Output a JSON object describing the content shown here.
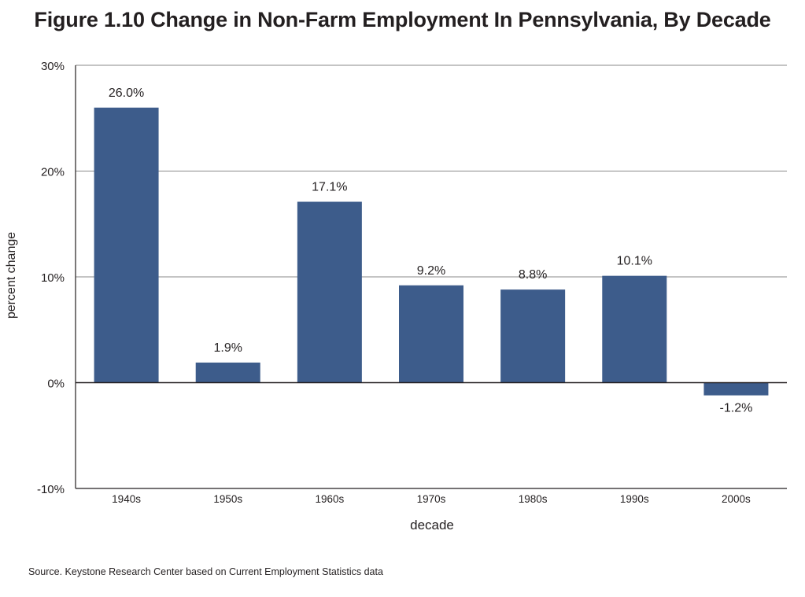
{
  "chart_data": {
    "type": "bar",
    "title": "Figure 1.10 Change in Non-Farm Employment In Pennsylvania, By Decade",
    "xlabel": "decade",
    "ylabel": "percent change",
    "categories": [
      "1940s",
      "1950s",
      "1960s",
      "1970s",
      "1980s",
      "1990s",
      "2000s"
    ],
    "values": [
      26.0,
      1.9,
      17.1,
      9.2,
      8.8,
      10.1,
      -1.2
    ],
    "value_labels": [
      "26.0%",
      "1.9%",
      "17.1%",
      "9.2%",
      "8.8%",
      "10.1%",
      "-1.2%"
    ],
    "ylim": [
      -10,
      30
    ],
    "yticks": [
      -10,
      0,
      10,
      20,
      30
    ],
    "ytick_labels": [
      "-10%",
      "0%",
      "10%",
      "20%",
      "30%"
    ],
    "grid": true,
    "legend": "none",
    "bar_color": "#3d5c8b"
  },
  "source": "Source. Keystone Research Center based on Current Employment Statistics data"
}
